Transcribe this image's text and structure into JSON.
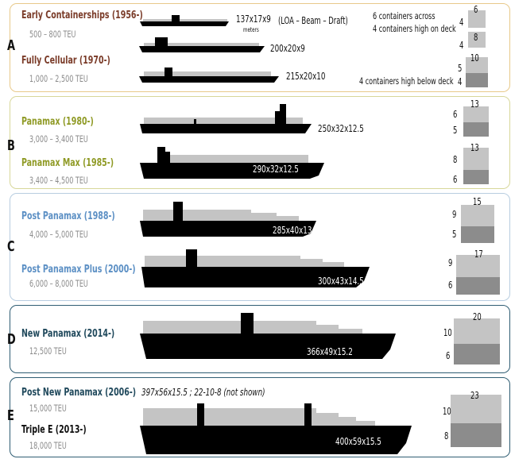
{
  "groups": [
    {
      "letter": "A",
      "color": "#e8c98a"
    },
    {
      "letter": "B",
      "color": "#d7d79a"
    },
    {
      "letter": "C",
      "color": "#b8cde0"
    },
    {
      "letter": "D",
      "color": "#2f5d73"
    },
    {
      "letter": "E",
      "color": "#2f5d73"
    }
  ],
  "colors": {
    "a_text": "#7a3b28",
    "b_text": "#8f9a25",
    "c_text": "#5b8fc4",
    "de_text": "#20495c",
    "hull": "#000000",
    "deck": "#c4c4c4",
    "below": "#8c8c8c"
  },
  "ships": [
    {
      "name": "Early Containerships (1956-)",
      "teu": "500 – 800 TEU",
      "dims": "137x17x9",
      "deck_above": "6",
      "below": "4"
    },
    {
      "name": "",
      "teu": "",
      "dims": "200x20x9",
      "deck_above": "8",
      "below": "4"
    },
    {
      "name": "Fully Cellular (1970-)",
      "teu": "1,000 – 2,500 TEU",
      "dims": "215x20x10",
      "deck_above": "10",
      "below": "5",
      "below2": "4"
    },
    {
      "name": "Panamax (1980-)",
      "teu": "3,000 – 3,400 TEU",
      "dims": "250x32x12.5",
      "deck_above": "13",
      "above_left": "6",
      "below": "5"
    },
    {
      "name": "Panamax Max (1985-)",
      "teu": "3,400 – 4,500 TEU",
      "dims": "290x32x12.5",
      "deck_above": "13",
      "above_left": "8",
      "below": "6"
    },
    {
      "name": "Post Panamax (1988-)",
      "teu": "4,000 – 5,000 TEU",
      "dims": "285x40x13",
      "deck_above": "15",
      "above_left": "9",
      "below": "5"
    },
    {
      "name": "Post Panamax Plus (2000-)",
      "teu": "6,000 – 8,000 TEU",
      "dims": "300x43x14.5",
      "deck_above": "17",
      "above_left": "9",
      "below": "6"
    },
    {
      "name": "New Panamax (2014-)",
      "teu": "12,500 TEU",
      "dims": "366x49x15.2",
      "deck_above": "20",
      "above_left": "10",
      "below": "6"
    },
    {
      "name": "Post New Panamax (2006-)",
      "teu": "15,000 TEU",
      "dims_note": "397x56x15.5 ; 22-10-8 (not shown)"
    },
    {
      "name": "Triple E (2013-)",
      "teu": "18,000 TEU",
      "dims": "400x59x15.5",
      "deck_above": "23",
      "above_left": "10",
      "below": "8"
    }
  ],
  "notes": {
    "dims_legend": "(LOA – Beam – Draft)",
    "meters": "meters",
    "across": "6 containers across",
    "high_on_deck": "4 containers high on deck",
    "high_below_deck": "4 containers high below deck"
  }
}
